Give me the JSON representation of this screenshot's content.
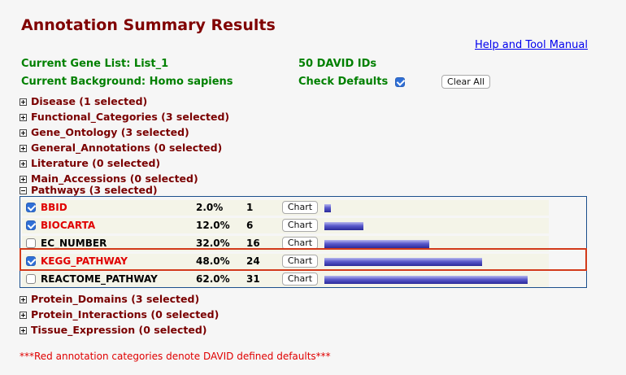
{
  "header": {
    "title": "Annotation Summary Results",
    "help_link": "Help and Tool Manual",
    "gene_list": "Current Gene List: List_1",
    "ids": "50 DAVID IDs",
    "background": "Current Background: Homo sapiens",
    "check_defaults": "Check Defaults",
    "check_defaults_checked": true,
    "clear_all": "Clear All"
  },
  "categories_top": [
    {
      "label": "Disease (1 selected)"
    },
    {
      "label": "Functional_Categories (3 selected)"
    },
    {
      "label": "Gene_Ontology (3 selected)"
    },
    {
      "label": "General_Annotations (0 selected)"
    },
    {
      "label": "Literature (0 selected)"
    },
    {
      "label": "Main_Accessions (0 selected)"
    }
  ],
  "pathways": {
    "label": "Pathways (3 selected)",
    "expanded": true,
    "chart_button": "Chart",
    "rows": [
      {
        "name": "BBID",
        "checked": true,
        "default": true,
        "percent": "2.0%",
        "count": "1",
        "fraction": 0.02
      },
      {
        "name": "BIOCARTA",
        "checked": true,
        "default": true,
        "percent": "12.0%",
        "count": "6",
        "fraction": 0.12
      },
      {
        "name": "EC_NUMBER",
        "checked": false,
        "default": false,
        "percent": "32.0%",
        "count": "16",
        "fraction": 0.32
      },
      {
        "name": "KEGG_PATHWAY",
        "checked": true,
        "default": true,
        "percent": "48.0%",
        "count": "24",
        "fraction": 0.48,
        "highlighted": true
      },
      {
        "name": "REACTOME_PATHWAY",
        "checked": false,
        "default": false,
        "percent": "62.0%",
        "count": "31",
        "fraction": 0.62
      }
    ]
  },
  "categories_bottom": [
    {
      "label": "Protein_Domains (3 selected)"
    },
    {
      "label": "Protein_Interactions (0 selected)"
    },
    {
      "label": "Tissue_Expression (0 selected)"
    }
  ],
  "footer_note": "***Red annotation categories denote DAVID defined defaults***",
  "colors": {
    "title": "#800000",
    "green": "#008000",
    "default_red": "#e00000",
    "highlight": "#d23a1a"
  }
}
